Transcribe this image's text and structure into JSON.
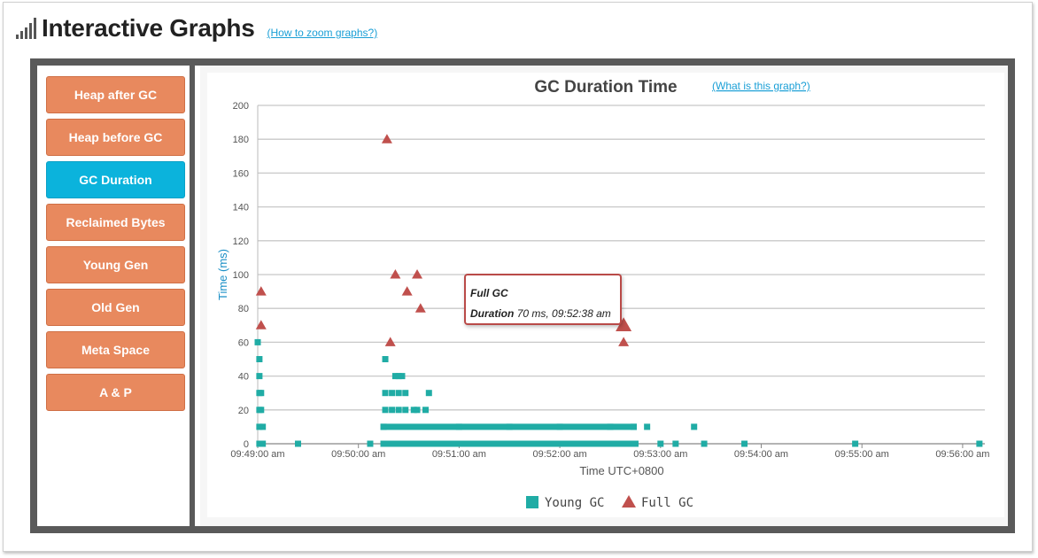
{
  "header": {
    "title": "Interactive Graphs",
    "zoom_link": "(How to zoom graphs?)"
  },
  "sidebar": {
    "items": [
      {
        "label": "Heap after GC",
        "active": false
      },
      {
        "label": "Heap before GC",
        "active": false
      },
      {
        "label": "GC Duration",
        "active": true
      },
      {
        "label": "Reclaimed Bytes",
        "active": false
      },
      {
        "label": "Young Gen",
        "active": false
      },
      {
        "label": "Old Gen",
        "active": false
      },
      {
        "label": "Meta Space",
        "active": false
      },
      {
        "label": "A & P",
        "active": false
      }
    ]
  },
  "chart": {
    "help_link": "(What is this graph?)"
  },
  "tooltip": {
    "type": "Full GC",
    "duration_label": "Duration",
    "duration_value": "70 ms, 09:52:38 am"
  },
  "colors": {
    "young_gc": "#20aca5",
    "full_gc": "#c0504d",
    "active_button": "#0bb3dc",
    "button": "#e8895e"
  },
  "chart_data": {
    "type": "scatter",
    "title": "GC Duration Time",
    "xlabel": "Time UTC+0800",
    "ylabel": "Time (ms)",
    "ylim": [
      0,
      200
    ],
    "yticks": [
      "0",
      "20",
      "40",
      "60",
      "80",
      "100",
      "120",
      "140",
      "160",
      "180",
      "200"
    ],
    "xticks": [
      "09:49:00 am",
      "09:50:00 am",
      "09:51:00 am",
      "09:52:00 am",
      "09:53:00 am",
      "09:54:00 am",
      "09:55:00 am",
      "09:56:00 am"
    ],
    "grid": true,
    "legend": "bottom-center",
    "series": [
      {
        "name": "Young GC",
        "marker": "square",
        "points": [
          [
            "09:49:00 am",
            60
          ],
          [
            "09:49:01 am",
            50
          ],
          [
            "09:49:01 am",
            40
          ],
          [
            "09:49:01 am",
            30
          ],
          [
            "09:49:02 am",
            30
          ],
          [
            "09:49:01 am",
            20
          ],
          [
            "09:49:02 am",
            20
          ],
          [
            "09:49:01 am",
            10
          ],
          [
            "09:49:03 am",
            10
          ],
          [
            "09:49:01 am",
            0
          ],
          [
            "09:49:03 am",
            0
          ],
          [
            "09:49:24 am",
            0
          ],
          [
            "09:50:07 am",
            0
          ],
          [
            "09:50:16 am",
            50
          ],
          [
            "09:50:22 am",
            40
          ],
          [
            "09:50:24 am",
            40
          ],
          [
            "09:50:26 am",
            40
          ],
          [
            "09:50:16 am",
            30
          ],
          [
            "09:50:20 am",
            30
          ],
          [
            "09:50:24 am",
            30
          ],
          [
            "09:50:28 am",
            30
          ],
          [
            "09:50:42 am",
            30
          ],
          [
            "09:50:16 am",
            20
          ],
          [
            "09:50:20 am",
            20
          ],
          [
            "09:50:24 am",
            20
          ],
          [
            "09:50:28 am",
            20
          ],
          [
            "09:50:33 am",
            20
          ],
          [
            "09:50:35 am",
            20
          ],
          [
            "09:50:40 am",
            20
          ],
          [
            "09:50:15 am",
            10
          ],
          [
            "09:51:00 am",
            10
          ],
          [
            "09:51:30 am",
            10
          ],
          [
            "09:52:00 am",
            10
          ],
          [
            "09:52:30 am",
            10
          ],
          [
            "09:52:44 am",
            10
          ],
          [
            "09:52:52 am",
            10
          ],
          [
            "09:53:20 am",
            10
          ],
          [
            "09:50:15 am",
            0
          ],
          [
            "09:51:00 am",
            0
          ],
          [
            "09:51:30 am",
            0
          ],
          [
            "09:52:00 am",
            0
          ],
          [
            "09:52:30 am",
            0
          ],
          [
            "09:52:45 am",
            0
          ],
          [
            "09:53:00 am",
            0
          ],
          [
            "09:53:09 am",
            0
          ],
          [
            "09:53:26 am",
            0
          ],
          [
            "09:53:50 am",
            0
          ],
          [
            "09:54:56 am",
            0
          ],
          [
            "09:56:10 am",
            0
          ]
        ]
      },
      {
        "name": "Full GC",
        "marker": "triangle",
        "points": [
          [
            "09:49:02 am",
            90
          ],
          [
            "09:49:02 am",
            70
          ],
          [
            "09:50:17 am",
            180
          ],
          [
            "09:50:22 am",
            100
          ],
          [
            "09:50:35 am",
            100
          ],
          [
            "09:50:29 am",
            90
          ],
          [
            "09:50:37 am",
            80
          ],
          [
            "09:50:19 am",
            60
          ],
          [
            "09:52:38 am",
            70
          ],
          [
            "09:52:38 am",
            60
          ]
        ]
      }
    ]
  }
}
